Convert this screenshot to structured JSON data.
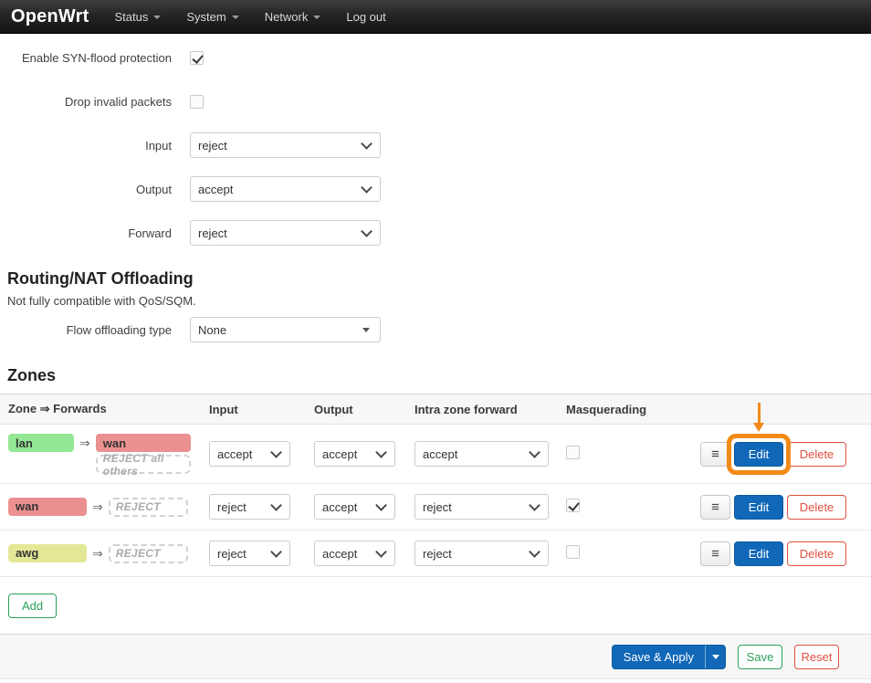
{
  "navbar": {
    "brand": "OpenWrt",
    "items": [
      {
        "label": "Status",
        "dropdown": true
      },
      {
        "label": "System",
        "dropdown": true
      },
      {
        "label": "Network",
        "dropdown": true
      },
      {
        "label": "Log out",
        "dropdown": false
      }
    ]
  },
  "form": {
    "fields": [
      {
        "label": "Enable SYN-flood protection",
        "type": "checkbox",
        "checked": true
      },
      {
        "label": "Drop invalid packets",
        "type": "checkbox",
        "checked": false
      },
      {
        "label": "Input",
        "type": "select",
        "value": "reject"
      },
      {
        "label": "Output",
        "type": "select",
        "value": "accept"
      },
      {
        "label": "Forward",
        "type": "select",
        "value": "reject"
      }
    ]
  },
  "offloading": {
    "title": "Routing/NAT Offloading",
    "description": "Not fully compatible with QoS/SQM.",
    "field_label": "Flow offloading type",
    "field_value": "None"
  },
  "zones": {
    "title": "Zones",
    "columns": [
      "Zone ⇒ Forwards",
      "Input",
      "Output",
      "Intra zone forward",
      "Masquerading"
    ],
    "arrow": "⇒",
    "rows": [
      {
        "zone": "lan",
        "forward": "wan",
        "forward_note": "REJECT all others",
        "input": "accept",
        "output": "accept",
        "intra_zone_forward": "accept",
        "masquerading": false,
        "annotated": true
      },
      {
        "zone": "wan",
        "forward": "REJECT",
        "input": "reject",
        "output": "accept",
        "intra_zone_forward": "reject",
        "masquerading": true,
        "annotated": false
      },
      {
        "zone": "awg",
        "forward": "REJECT",
        "input": "reject",
        "output": "accept",
        "intra_zone_forward": "reject",
        "masquerading": false,
        "annotated": false
      }
    ],
    "actions": {
      "edit": "Edit",
      "delete": "Delete"
    },
    "add_label": "Add"
  },
  "footer": {
    "save_apply_label": "Save & Apply",
    "save_label": "Save",
    "reset_label": "Reset"
  },
  "icons": {
    "menu": "≡",
    "caret_down": "▾",
    "forward_arrow": "⇒"
  },
  "colors": {
    "accent_blue": "#1168b8",
    "green": "#2aa05a",
    "red": "#e0503f",
    "annotation_orange": "#f28a17",
    "zone_lan": "#94e794",
    "zone_wan": "#eb9090",
    "zone_awg": "#e3e897"
  },
  "annotation": {
    "type": "highlight",
    "target": "edit-button of first zone row",
    "color": "#f28a17"
  }
}
